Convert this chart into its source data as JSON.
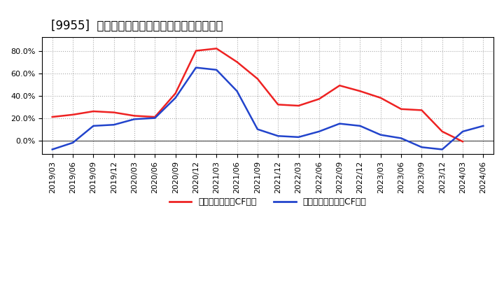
{
  "title": "[9955]  有利子負債キャッシュフロー比率の推移",
  "x_labels": [
    "2019/03",
    "2019/06",
    "2019/09",
    "2019/12",
    "2020/03",
    "2020/06",
    "2020/09",
    "2020/12",
    "2021/03",
    "2021/06",
    "2021/09",
    "2021/12",
    "2022/03",
    "2022/06",
    "2022/09",
    "2022/12",
    "2023/03",
    "2023/06",
    "2023/09",
    "2023/12",
    "2024/03",
    "2024/06"
  ],
  "red_values": [
    0.21,
    0.23,
    0.26,
    0.25,
    0.22,
    0.21,
    0.42,
    0.8,
    0.82,
    0.7,
    0.55,
    0.32,
    0.31,
    0.37,
    0.49,
    0.44,
    0.38,
    0.28,
    0.27,
    0.08,
    -0.01,
    null
  ],
  "blue_values": [
    -0.08,
    -0.02,
    0.13,
    0.14,
    0.19,
    0.2,
    0.38,
    0.65,
    0.63,
    0.44,
    0.1,
    0.04,
    0.03,
    0.08,
    0.15,
    0.13,
    0.05,
    0.02,
    -0.06,
    -0.08,
    0.08,
    0.13
  ],
  "red_color": "#ee2222",
  "blue_color": "#2244cc",
  "legend_red": "有利子負債営業CF比率",
  "legend_blue": "有利子負債フリーCF比率",
  "ylim": [
    -0.12,
    0.92
  ],
  "yticks": [
    0.0,
    0.2,
    0.4,
    0.6,
    0.8
  ],
  "bg_color": "#ffffff",
  "plot_bg_color": "#ffffff",
  "grid_color": "#aaaaaa",
  "title_fontsize": 12,
  "tick_fontsize": 8,
  "legend_fontsize": 9
}
